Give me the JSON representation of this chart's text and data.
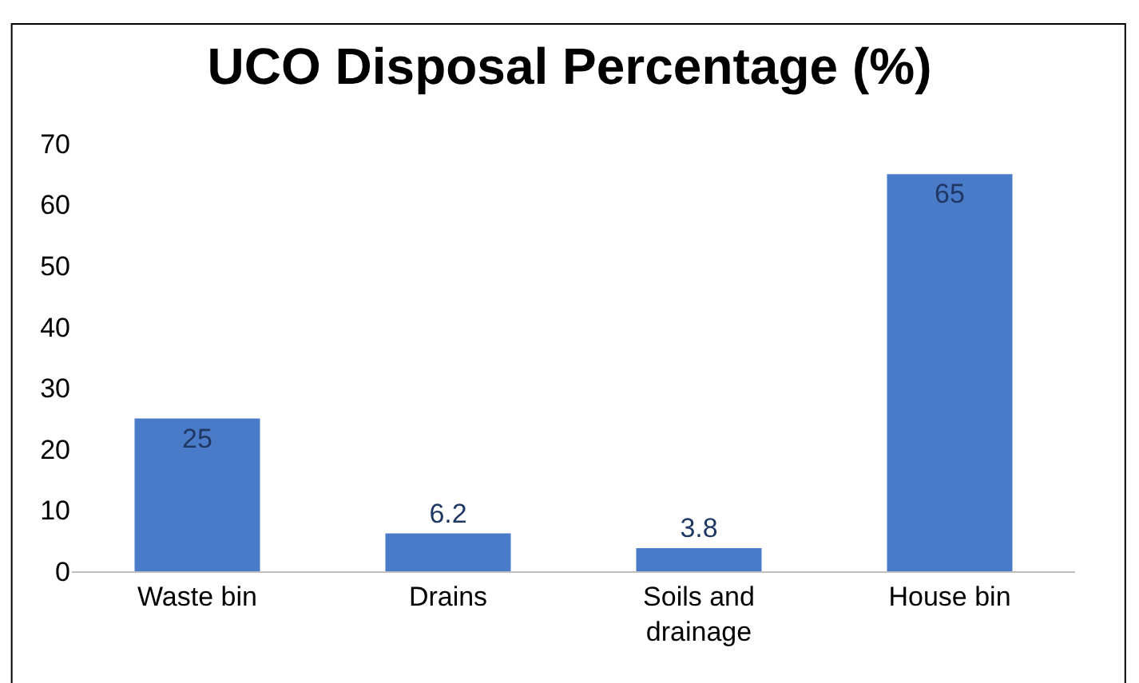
{
  "chart_data": {
    "type": "bar",
    "title": "UCO Disposal Percentage (%)",
    "categories": [
      "Waste bin",
      "Drains",
      "Soils and drainage",
      "House bin"
    ],
    "values": [
      25,
      6.2,
      3.8,
      65
    ],
    "color": "#4a7bc8",
    "ylim": [
      0,
      70
    ],
    "yticks": [
      0,
      10,
      20,
      30,
      40,
      50,
      60,
      70
    ],
    "grid": false,
    "data_labels": true
  }
}
